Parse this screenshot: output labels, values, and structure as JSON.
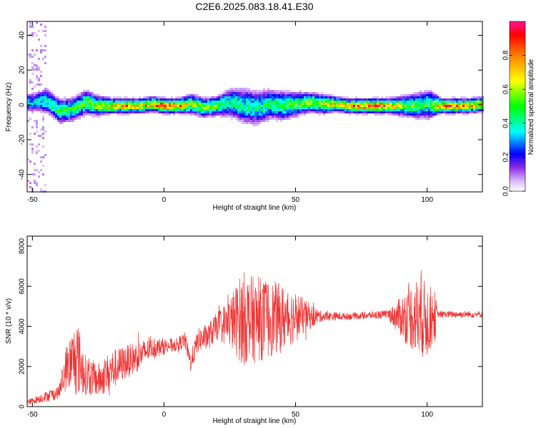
{
  "title": "C2E6.2025.083.18.41.E30",
  "chart_data": [
    {
      "type": "heatmap",
      "name": "spectrogram",
      "xlabel": "Height of straight line (km)",
      "ylabel": "Frequency (Hz)",
      "xlim": [
        -52,
        121
      ],
      "ylim": [
        -50,
        48
      ],
      "xticks": [
        -50,
        0,
        50,
        100
      ],
      "yticks": [
        -40,
        -20,
        0,
        20,
        40
      ],
      "colorbar": {
        "label": "Normalized spectral amplitude",
        "range": [
          0,
          1
        ],
        "ticks": [
          0.0,
          0.2,
          0.4,
          0.6,
          0.8
        ]
      },
      "ridge": [
        {
          "x": -50,
          "freq": 2,
          "width": 4,
          "peak": 0.35
        },
        {
          "x": -45,
          "freq": 3,
          "width": 5,
          "peak": 0.45
        },
        {
          "x": -40,
          "freq": -3,
          "width": 5,
          "peak": 0.5
        },
        {
          "x": -35,
          "freq": -2,
          "width": 5,
          "peak": 0.5
        },
        {
          "x": -30,
          "freq": 2,
          "width": 5,
          "peak": 0.55
        },
        {
          "x": -25,
          "freq": 0,
          "width": 4,
          "peak": 0.65
        },
        {
          "x": -20,
          "freq": 0,
          "width": 3,
          "peak": 0.8
        },
        {
          "x": -15,
          "freq": 0,
          "width": 3,
          "peak": 0.8
        },
        {
          "x": -10,
          "freq": 0,
          "width": 3,
          "peak": 0.75
        },
        {
          "x": -5,
          "freq": 1,
          "width": 3,
          "peak": 0.8
        },
        {
          "x": 0,
          "freq": 0,
          "width": 3,
          "peak": 0.9
        },
        {
          "x": 5,
          "freq": 0,
          "width": 3,
          "peak": 0.85
        },
        {
          "x": 10,
          "freq": 1,
          "width": 4,
          "peak": 0.65
        },
        {
          "x": 15,
          "freq": -1,
          "width": 4,
          "peak": 0.6
        },
        {
          "x": 20,
          "freq": 0,
          "width": 4,
          "peak": 0.55
        },
        {
          "x": 25,
          "freq": 2,
          "width": 6,
          "peak": 0.45
        },
        {
          "x": 30,
          "freq": 0,
          "width": 7,
          "peak": 0.45
        },
        {
          "x": 35,
          "freq": -1,
          "width": 7,
          "peak": 0.45
        },
        {
          "x": 40,
          "freq": 1,
          "width": 6,
          "peak": 0.5
        },
        {
          "x": 45,
          "freq": 0,
          "width": 6,
          "peak": 0.5
        },
        {
          "x": 50,
          "freq": 1,
          "width": 5,
          "peak": 0.55
        },
        {
          "x": 55,
          "freq": 2,
          "width": 4,
          "peak": 0.6
        },
        {
          "x": 60,
          "freq": 1,
          "width": 4,
          "peak": 0.65
        },
        {
          "x": 65,
          "freq": 1,
          "width": 3,
          "peak": 0.75
        },
        {
          "x": 70,
          "freq": 0,
          "width": 3,
          "peak": 0.8
        },
        {
          "x": 75,
          "freq": 0,
          "width": 3,
          "peak": 0.85
        },
        {
          "x": 80,
          "freq": 0,
          "width": 3,
          "peak": 0.9
        },
        {
          "x": 85,
          "freq": 0,
          "width": 3,
          "peak": 0.85
        },
        {
          "x": 90,
          "freq": 0,
          "width": 4,
          "peak": 0.6
        },
        {
          "x": 95,
          "freq": 0,
          "width": 5,
          "peak": 0.55
        },
        {
          "x": 100,
          "freq": 1,
          "width": 6,
          "peak": 0.5
        },
        {
          "x": 105,
          "freq": 0,
          "width": 3,
          "peak": 0.85
        },
        {
          "x": 110,
          "freq": 0,
          "width": 3,
          "peak": 0.85
        },
        {
          "x": 115,
          "freq": 0,
          "width": 3,
          "peak": 0.8
        },
        {
          "x": 121,
          "freq": 1,
          "width": 3,
          "peak": 0.75
        }
      ]
    },
    {
      "type": "line",
      "name": "snr",
      "xlabel": "Height of straight line (km)",
      "ylabel": "SNR (10 * v/v)",
      "xlim": [
        -52,
        121
      ],
      "ylim": [
        0,
        8500
      ],
      "xticks": [
        -50,
        0,
        50,
        100
      ],
      "yticks": [
        0,
        2000,
        4000,
        6000,
        8000
      ],
      "color": "#ee3333",
      "envelope": [
        {
          "x": -52,
          "mean": 200,
          "amp": 150
        },
        {
          "x": -45,
          "mean": 500,
          "amp": 300
        },
        {
          "x": -40,
          "mean": 700,
          "amp": 400
        },
        {
          "x": -37,
          "mean": 2000,
          "amp": 1400
        },
        {
          "x": -33,
          "mean": 2500,
          "amp": 2300
        },
        {
          "x": -30,
          "mean": 1600,
          "amp": 1200
        },
        {
          "x": -25,
          "mean": 1300,
          "amp": 1000
        },
        {
          "x": -20,
          "mean": 1800,
          "amp": 1200
        },
        {
          "x": -15,
          "mean": 2200,
          "amp": 1000
        },
        {
          "x": -10,
          "mean": 2500,
          "amp": 900
        },
        {
          "x": -5,
          "mean": 2900,
          "amp": 600
        },
        {
          "x": 0,
          "mean": 3000,
          "amp": 500
        },
        {
          "x": 5,
          "mean": 3100,
          "amp": 400
        },
        {
          "x": 8,
          "mean": 3300,
          "amp": 500
        },
        {
          "x": 10,
          "mean": 2200,
          "amp": 600
        },
        {
          "x": 13,
          "mean": 3300,
          "amp": 700
        },
        {
          "x": 17,
          "mean": 3500,
          "amp": 800
        },
        {
          "x": 20,
          "mean": 4000,
          "amp": 800
        },
        {
          "x": 25,
          "mean": 4200,
          "amp": 1500
        },
        {
          "x": 30,
          "mean": 4400,
          "amp": 2800
        },
        {
          "x": 35,
          "mean": 4300,
          "amp": 2500
        },
        {
          "x": 40,
          "mean": 4400,
          "amp": 2300
        },
        {
          "x": 45,
          "mean": 4400,
          "amp": 2000
        },
        {
          "x": 50,
          "mean": 4500,
          "amp": 1500
        },
        {
          "x": 55,
          "mean": 4500,
          "amp": 800
        },
        {
          "x": 60,
          "mean": 4500,
          "amp": 300
        },
        {
          "x": 70,
          "mean": 4500,
          "amp": 200
        },
        {
          "x": 85,
          "mean": 4600,
          "amp": 250
        },
        {
          "x": 88,
          "mean": 4500,
          "amp": 800
        },
        {
          "x": 93,
          "mean": 4500,
          "amp": 1800
        },
        {
          "x": 97,
          "mean": 4500,
          "amp": 2500
        },
        {
          "x": 100,
          "mean": 4300,
          "amp": 2200
        },
        {
          "x": 103,
          "mean": 4500,
          "amp": 1500
        },
        {
          "x": 104,
          "mean": 4600,
          "amp": 200
        },
        {
          "x": 121,
          "mean": 4600,
          "amp": 200
        }
      ]
    }
  ]
}
